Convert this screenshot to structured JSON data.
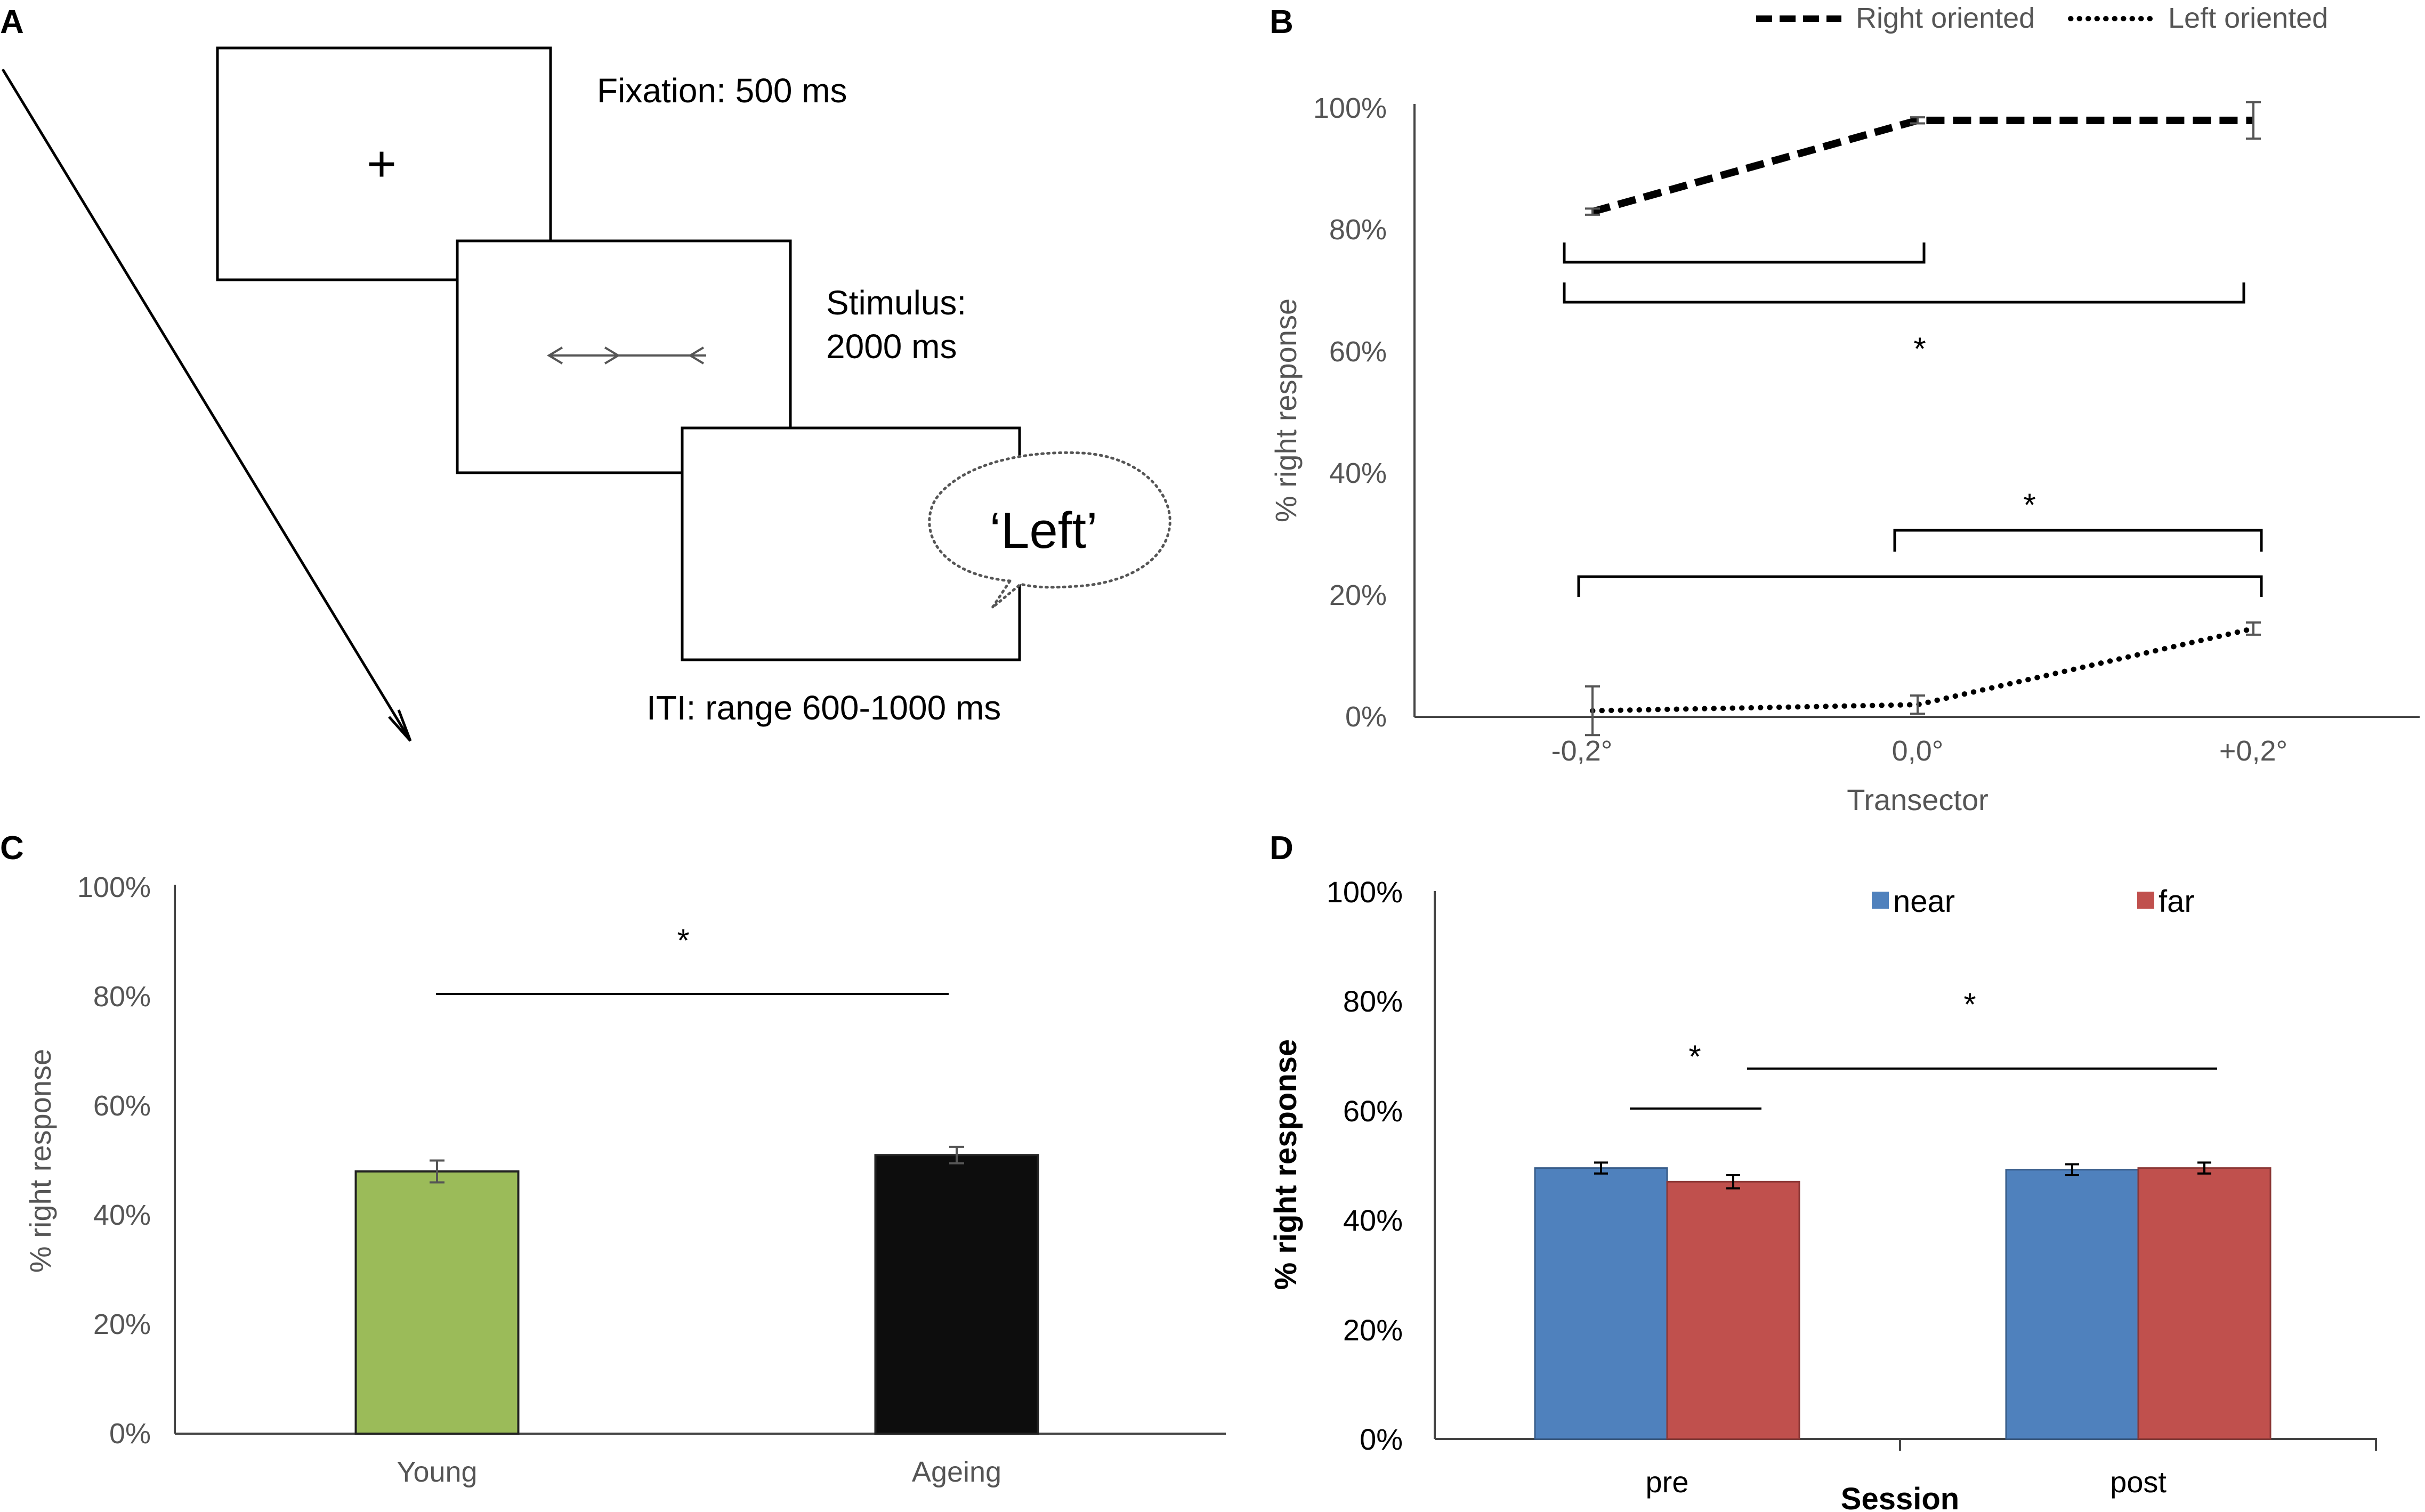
{
  "panel_a": {
    "letter": "A",
    "fixation": "Fixation: 500 ms",
    "fixation_symbol": "+",
    "stimulus_line1": "Stimulus:",
    "stimulus_line2": "2000 ms",
    "response": "‘Left’",
    "iti": "ITI:  range 600-1000 ms"
  },
  "chart_data": [
    {
      "id": "B",
      "type": "line",
      "letter": "B",
      "xlabel": "Transector",
      "ylabel": "% right response",
      "categories": [
        "-0,2°",
        "0,0°",
        "+0,2°"
      ],
      "yticks": [
        "0%",
        "20%",
        "40%",
        "60%",
        "80%",
        "100%"
      ],
      "ylim": [
        0,
        100
      ],
      "legend_position": "top-right",
      "series": [
        {
          "name": "Right oriented",
          "style": "dashed",
          "values": [
            83,
            98,
            98
          ],
          "errors": [
            0.5,
            0.5,
            3
          ]
        },
        {
          "name": "Left oriented",
          "style": "dotted",
          "values": [
            1,
            2,
            14.5
          ],
          "errors": [
            4,
            1.5,
            1
          ]
        }
      ],
      "annotations": [
        "*",
        "*"
      ]
    },
    {
      "id": "C",
      "type": "bar",
      "letter": "C",
      "xlabel": "",
      "ylabel": "% right response",
      "categories": [
        "Young",
        "Ageing"
      ],
      "values": [
        48,
        51
      ],
      "errors": [
        2,
        1.5
      ],
      "colors": [
        "#9bbb59",
        "#0d0d0d"
      ],
      "yticks": [
        "0%",
        "20%",
        "40%",
        "60%",
        "80%",
        "100%"
      ],
      "ylim": [
        0,
        100
      ],
      "annotations": [
        "*"
      ]
    },
    {
      "id": "D",
      "type": "bar",
      "letter": "D",
      "xlabel": "Session",
      "ylabel": "% right response",
      "categories": [
        "pre",
        "post"
      ],
      "yticks": [
        "0%",
        "20%",
        "40%",
        "60%",
        "80%",
        "100%"
      ],
      "ylim": [
        0,
        100
      ],
      "legend_position": "top",
      "series": [
        {
          "name": "near",
          "color": "#4f81bd",
          "values": [
            49.5,
            49.2
          ],
          "errors": [
            1,
            1
          ]
        },
        {
          "name": "far",
          "color": "#c0504d",
          "values": [
            47,
            49.5
          ],
          "errors": [
            1.2,
            1
          ]
        }
      ],
      "annotations": [
        "*",
        "*"
      ]
    }
  ]
}
